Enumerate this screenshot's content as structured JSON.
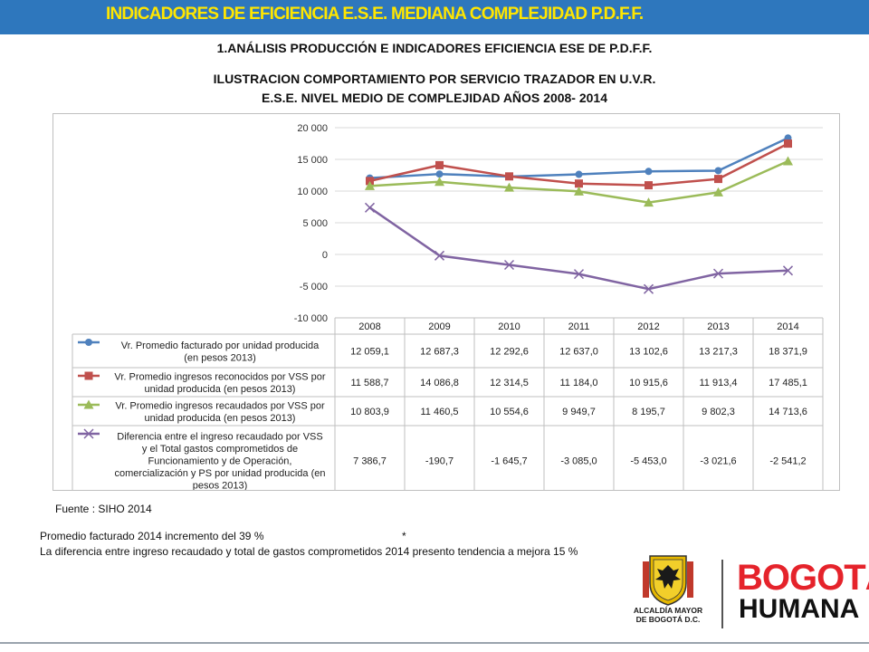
{
  "header": {
    "title": "INDICADORES DE EFICIENCIA E.S.E.  MEDIANA COMPLEJIDAD   P.D.F.F.",
    "subtitle1": "1.ANÁLISIS PRODUCCIÓN E INDICADORES EFICIENCIA ESE DE P.D.F.F.",
    "subtitle2": "ILUSTRACION COMPORTAMIENTO POR SERVICIO TRAZADOR EN U.V.R.",
    "subtitle3": "E.S.E. NIVEL MEDIO DE COMPLEJIDAD AÑOS 2008- 2014"
  },
  "chart_data": {
    "type": "line",
    "title": "",
    "xlabel": "",
    "ylabel": "",
    "categories": [
      "2008",
      "2009",
      "2010",
      "2011",
      "2012",
      "2013",
      "2014"
    ],
    "ylim": [
      -10000,
      20000
    ],
    "yticks": [
      20000,
      15000,
      10000,
      5000,
      0,
      -5000,
      -10000
    ],
    "ytick_labels": [
      "20 000",
      "15 000",
      "10 000",
      "5 000",
      "0",
      "-5 000",
      "-10 000"
    ],
    "grid": true,
    "legend": "data-table",
    "series": [
      {
        "name_lines": [
          "Vr. Promedio facturado por unidad producida",
          "(en pesos 2013)"
        ],
        "color": "#4f81bd",
        "marker": "circle",
        "values": [
          12059.1,
          12687.3,
          12292.6,
          12637.0,
          13102.6,
          13217.3,
          18371.9
        ],
        "labels": [
          "12 059,1",
          "12 687,3",
          "12 292,6",
          "12 637,0",
          "13 102,6",
          "13 217,3",
          "18 371,9"
        ]
      },
      {
        "name_lines": [
          "Vr. Promedio ingresos reconocidos por VSS por",
          "unidad producida (en pesos 2013)"
        ],
        "color": "#c0504d",
        "marker": "square",
        "values": [
          11588.7,
          14086.8,
          12314.5,
          11184.0,
          10915.6,
          11913.4,
          17485.1
        ],
        "labels": [
          "11 588,7",
          "14 086,8",
          "12 314,5",
          "11 184,0",
          "10 915,6",
          "11 913,4",
          "17 485,1"
        ]
      },
      {
        "name_lines": [
          "Vr. Promedio ingresos recaudados por VSS por",
          "unidad producida (en pesos 2013)"
        ],
        "color": "#9bbb59",
        "marker": "triangle",
        "values": [
          10803.9,
          11460.5,
          10554.6,
          9949.7,
          8195.7,
          9802.3,
          14713.6
        ],
        "labels": [
          "10 803,9",
          "11 460,5",
          "10 554,6",
          "9 949,7",
          "8 195,7",
          "9 802,3",
          "14 713,6"
        ]
      },
      {
        "name_lines": [
          "Diferencia entre el ingreso recaudado por VSS",
          "y el Total gastos comprometidos de",
          "Funcionamiento y de Operación,",
          "comercialización y PS por unidad producida (en",
          "pesos 2013)"
        ],
        "color": "#8064a2",
        "marker": "x",
        "values": [
          7386.7,
          -190.7,
          -1645.7,
          -3085.0,
          -5453.0,
          -3021.6,
          -2541.2
        ],
        "labels": [
          "7 386,7",
          "-190,7",
          "-1 645,7",
          "-3 085,0",
          "-5 453,0",
          "-3 021,6",
          "-2 541,2"
        ]
      }
    ]
  },
  "source_text": "Fuente : SIHO 2014",
  "notes": {
    "line1": "Promedio facturado 2014 incremento  del 39 %",
    "line1_mark": "*",
    "line2": "La diferencia entre ingreso recaudado  y total de gastos comprometidos 2014 presento tendencia a mejora 15 %"
  },
  "logos": {
    "crest_label_line1": "ALCALDÍA MAYOR",
    "crest_label_line2": "DE BOGOTÁ D.C.",
    "brand_line1": "BOGOTÁ",
    "brand_line2": "HUMANA",
    "brand_color": "#e5232b",
    "crest_color": "#e5b700"
  }
}
